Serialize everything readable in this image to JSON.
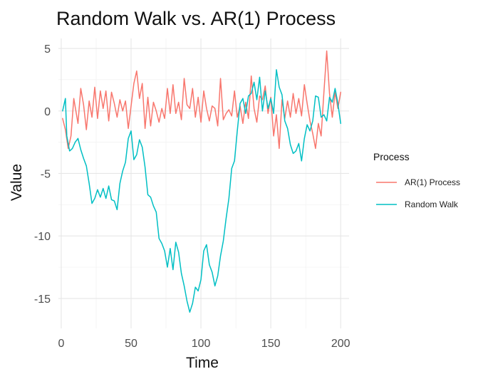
{
  "chart_data": {
    "type": "line",
    "title": "Random Walk vs. AR(1) Process",
    "xlabel": "Time",
    "ylabel": "Value",
    "xlim": [
      -2,
      206
    ],
    "ylim": [
      -17.4,
      5.8
    ],
    "x_ticks": [
      0,
      50,
      100,
      150,
      200
    ],
    "y_ticks": [
      5,
      0,
      -5,
      -10,
      -15
    ],
    "x_tick_labels": [
      "0",
      "50",
      "100",
      "150",
      "200"
    ],
    "y_tick_labels": [
      "5",
      "0",
      "-5",
      "-10",
      "-15"
    ],
    "grid": true,
    "legend": {
      "title": "Process",
      "position": "right"
    },
    "series": [
      {
        "name": "AR(1) Process",
        "color": "#F8766D",
        "x": [
          1,
          3,
          5,
          7,
          9,
          12,
          14,
          16,
          18,
          20,
          22,
          24,
          26,
          28,
          30,
          32,
          34,
          36,
          38,
          40,
          42,
          44,
          46,
          48,
          50,
          52,
          54,
          56,
          58,
          60,
          62,
          64,
          66,
          68,
          70,
          72,
          74,
          76,
          78,
          80,
          82,
          84,
          86,
          88,
          90,
          92,
          94,
          96,
          98,
          100,
          102,
          104,
          106,
          108,
          110,
          112,
          114,
          116,
          118,
          120,
          122,
          124,
          126,
          128,
          130,
          132,
          134,
          136,
          138,
          140,
          142,
          144,
          146,
          148,
          150,
          152,
          154,
          156,
          158,
          160,
          162,
          164,
          166,
          168,
          170,
          172,
          174,
          176,
          178,
          180,
          182,
          184,
          186,
          188,
          190,
          192,
          194,
          196,
          198,
          200
        ],
        "values": [
          -0.6,
          -1.5,
          -3.0,
          -2.0,
          1.0,
          -1.0,
          1.8,
          0.5,
          -1.5,
          0.8,
          -0.5,
          1.9,
          -0.6,
          1.6,
          0.2,
          1.6,
          -0.8,
          1.5,
          0.6,
          -0.5,
          0.9,
          0.0,
          0.8,
          -1.4,
          0.4,
          2.2,
          3.2,
          1.0,
          2.2,
          -1.4,
          1.1,
          -1.2,
          0.7,
          0.0,
          -0.9,
          0.2,
          -0.6,
          1.8,
          -0.2,
          2.1,
          -0.2,
          0.7,
          -0.7,
          2.6,
          0.5,
          0.2,
          1.8,
          -0.5,
          1.1,
          -0.9,
          1.6,
          0.2,
          -0.8,
          0.4,
          0.2,
          -1.2,
          2.6,
          -0.7,
          -0.2,
          0.1,
          -0.4,
          1.6,
          -0.5,
          0.4,
          -1.0,
          0.7,
          -0.6,
          2.8,
          0.2,
          -0.9,
          1.2,
          0.9,
          2.0,
          -0.2,
          1.1,
          -2.0,
          -0.3,
          -3.0,
          0.9,
          -0.6,
          0.8,
          -0.5,
          1.4,
          -0.2,
          1.0,
          -0.4,
          2.1,
          0.6,
          -0.8,
          -1.8,
          -3.0,
          -1.0,
          -2.0,
          1.5,
          4.8,
          1.4,
          -0.5,
          1.5,
          0.2,
          1.5
        ]
      },
      {
        "name": "Random Walk",
        "color": "#00BFC4",
        "x": [
          1,
          3,
          4,
          6,
          8,
          10,
          12,
          14,
          16,
          18,
          20,
          22,
          24,
          26,
          28,
          30,
          32,
          34,
          36,
          38,
          40,
          42,
          44,
          46,
          48,
          50,
          52,
          54,
          56,
          58,
          60,
          62,
          64,
          66,
          68,
          70,
          72,
          74,
          76,
          78,
          80,
          82,
          84,
          86,
          88,
          90,
          92,
          94,
          96,
          98,
          100,
          102,
          104,
          106,
          108,
          110,
          112,
          114,
          116,
          118,
          120,
          122,
          124,
          126,
          128,
          130,
          132,
          134,
          136,
          138,
          140,
          142,
          144,
          146,
          148,
          150,
          152,
          154,
          156,
          158,
          160,
          162,
          164,
          166,
          168,
          170,
          172,
          174,
          176,
          178,
          180,
          182,
          184,
          186,
          188,
          190,
          192,
          194,
          196,
          198,
          200
        ],
        "values": [
          0.0,
          1.0,
          -2.0,
          -3.2,
          -3.0,
          -2.5,
          -2.2,
          -3.1,
          -3.8,
          -4.4,
          -5.8,
          -7.4,
          -7.0,
          -6.3,
          -6.9,
          -6.2,
          -7.0,
          -6.0,
          -7.1,
          -7.2,
          -7.9,
          -5.8,
          -4.8,
          -4.1,
          -2.2,
          -1.6,
          -3.9,
          -3.5,
          -2.3,
          -2.9,
          -4.5,
          -6.7,
          -6.9,
          -7.6,
          -8.1,
          -10.2,
          -10.6,
          -11.2,
          -12.5,
          -11.0,
          -12.7,
          -10.5,
          -11.3,
          -13.0,
          -14.0,
          -15.2,
          -16.1,
          -15.4,
          -14.1,
          -14.4,
          -13.5,
          -11.2,
          -10.7,
          -12.3,
          -12.9,
          -14.0,
          -13.2,
          -11.6,
          -10.4,
          -8.6,
          -7.0,
          -4.6,
          -4.0,
          -1.6,
          0.6,
          1.0,
          -0.2,
          1.2,
          1.4,
          2.3,
          0.9,
          2.7,
          0.0,
          1.6,
          0.2,
          1.0,
          -0.2,
          3.3,
          1.9,
          1.3,
          -0.8,
          -1.4,
          -2.7,
          -3.4,
          -3.2,
          -2.6,
          -4.0,
          -2.2,
          -1.1,
          -1.6,
          -0.8,
          1.2,
          1.1,
          -0.5,
          -0.3,
          -0.8,
          1.1,
          0.7,
          1.8,
          0.6,
          -1.0
        ]
      }
    ]
  }
}
